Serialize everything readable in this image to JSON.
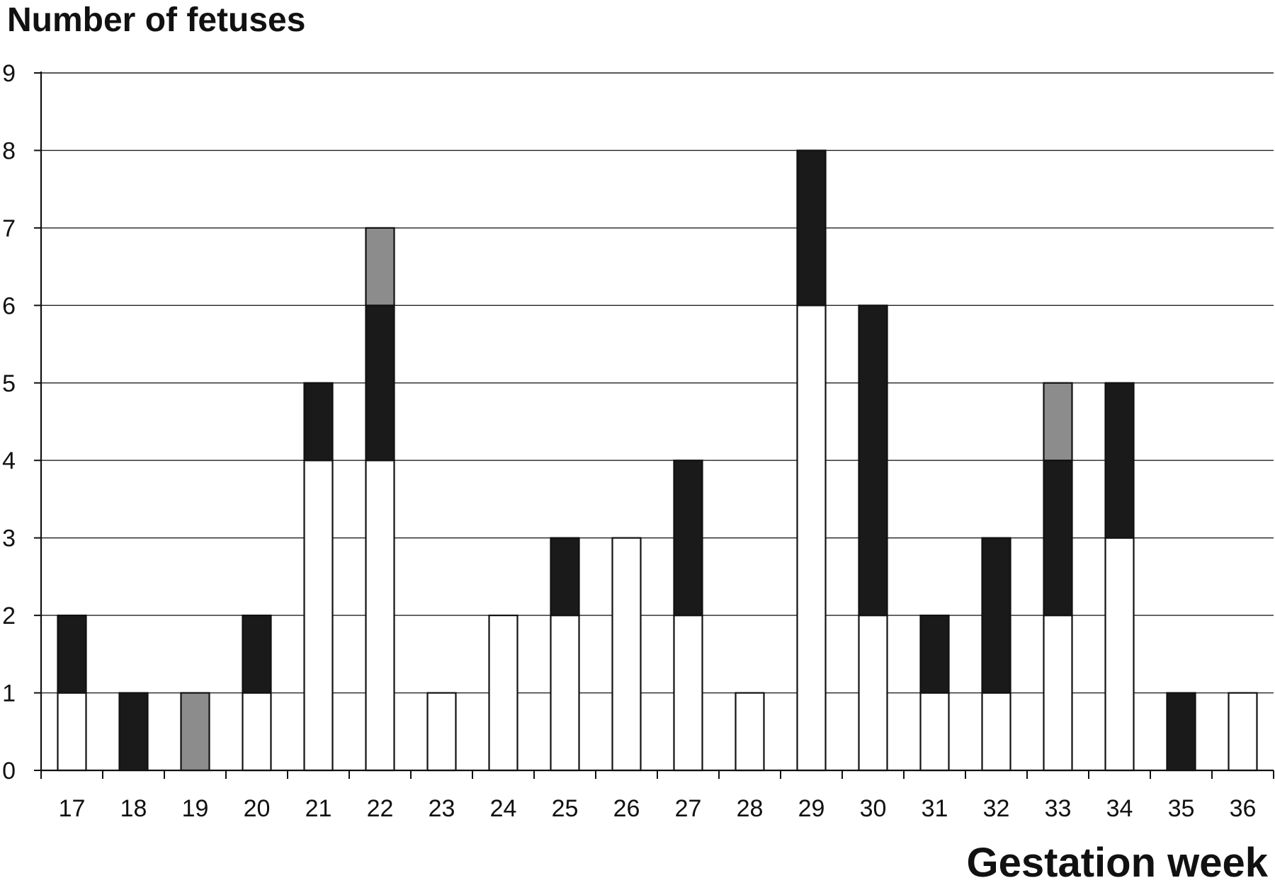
{
  "chart_data": {
    "type": "bar",
    "stacked": true,
    "title": "",
    "ylabel": "Number of fetuses",
    "xlabel": "Gestation week",
    "ylim": [
      0,
      9
    ],
    "yticks": [
      "0",
      "1",
      "2",
      "3",
      "4",
      "5",
      "6",
      "7",
      "8",
      "9"
    ],
    "grid": true,
    "categories": [
      "17",
      "18",
      "19",
      "20",
      "21",
      "22",
      "23",
      "24",
      "25",
      "26",
      "27",
      "28",
      "29",
      "30",
      "31",
      "32",
      "33",
      "34",
      "35",
      "36"
    ],
    "series": [
      {
        "color": "#ffffff",
        "values": [
          1,
          0,
          0,
          1,
          4,
          4,
          1,
          2,
          2,
          3,
          2,
          1,
          6,
          2,
          1,
          1,
          2,
          3,
          0,
          1
        ]
      },
      {
        "color": "#1a1a1a",
        "values": [
          1,
          1,
          0,
          1,
          1,
          2,
          0,
          0,
          1,
          0,
          2,
          0,
          2,
          4,
          1,
          2,
          2,
          2,
          1,
          0
        ]
      },
      {
        "color": "#8c8c8c",
        "values": [
          0,
          0,
          1,
          0,
          0,
          1,
          0,
          0,
          0,
          0,
          0,
          0,
          0,
          0,
          0,
          0,
          1,
          0,
          0,
          0
        ]
      }
    ]
  }
}
